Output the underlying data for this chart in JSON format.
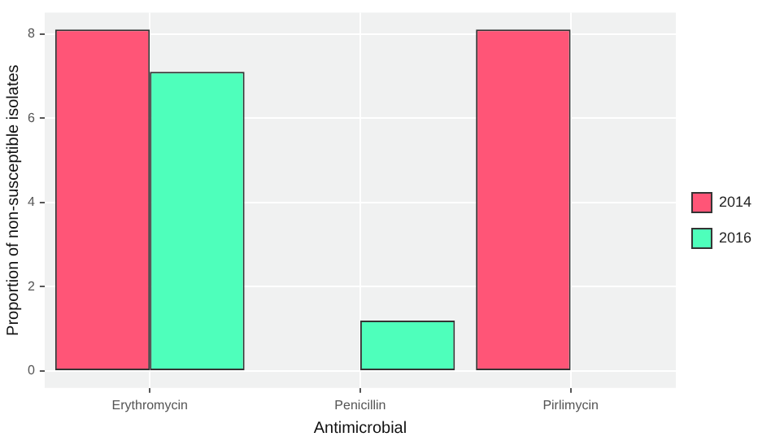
{
  "chart_data": {
    "type": "bar",
    "xlabel": "Antimicrobial",
    "ylabel": "Proportion of non-susceptible isolates",
    "categories": [
      "Erythromycin",
      "Penicillin",
      "Pirlimycin"
    ],
    "series": [
      {
        "name": "2014",
        "color": "#ff5577",
        "values": [
          8.1,
          0,
          8.1
        ]
      },
      {
        "name": "2016",
        "color": "#4effbb",
        "values": [
          7.1,
          1.2,
          0
        ]
      }
    ],
    "ylim": [
      -0.4,
      8.5
    ],
    "yticks": [
      0,
      2,
      4,
      6,
      8
    ],
    "grid": true,
    "legend": "right"
  }
}
